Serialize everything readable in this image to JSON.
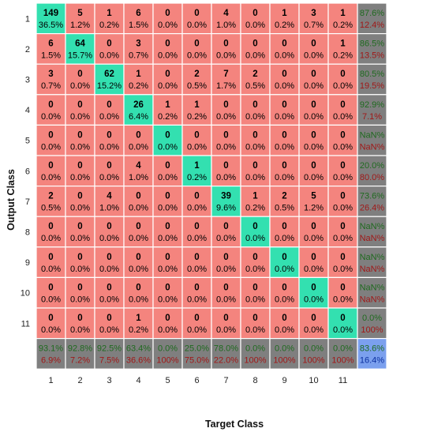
{
  "chart_data": {
    "type": "heatmap",
    "variant": "confusion-matrix",
    "xlabel": "Target Class",
    "ylabel": "Output Class",
    "x_ticks": [
      "1",
      "2",
      "3",
      "4",
      "5",
      "6",
      "7",
      "8",
      "9",
      "10",
      "11"
    ],
    "y_ticks": [
      "1",
      "2",
      "3",
      "4",
      "5",
      "6",
      "7",
      "8",
      "9",
      "10",
      "11"
    ],
    "counts": [
      [
        149,
        5,
        1,
        6,
        0,
        0,
        4,
        0,
        1,
        3,
        1
      ],
      [
        6,
        64,
        0,
        3,
        0,
        0,
        0,
        0,
        0,
        0,
        1
      ],
      [
        3,
        0,
        62,
        1,
        0,
        2,
        7,
        2,
        0,
        0,
        0
      ],
      [
        0,
        0,
        0,
        26,
        1,
        1,
        0,
        0,
        0,
        0,
        0
      ],
      [
        0,
        0,
        0,
        0,
        0,
        0,
        0,
        0,
        0,
        0,
        0
      ],
      [
        0,
        0,
        0,
        4,
        0,
        1,
        0,
        0,
        0,
        0,
        0
      ],
      [
        2,
        0,
        4,
        0,
        0,
        0,
        39,
        1,
        2,
        5,
        0
      ],
      [
        0,
        0,
        0,
        0,
        0,
        0,
        0,
        0,
        0,
        0,
        0
      ],
      [
        0,
        0,
        0,
        0,
        0,
        0,
        0,
        0,
        0,
        0,
        0
      ],
      [
        0,
        0,
        0,
        0,
        0,
        0,
        0,
        0,
        0,
        0,
        0
      ],
      [
        0,
        0,
        0,
        1,
        0,
        0,
        0,
        0,
        0,
        0,
        0
      ]
    ],
    "percents": [
      [
        "36.5%",
        "1.2%",
        "0.2%",
        "1.5%",
        "0.0%",
        "0.0%",
        "1.0%",
        "0.0%",
        "0.2%",
        "0.7%",
        "0.2%"
      ],
      [
        "1.5%",
        "15.7%",
        "0.0%",
        "0.7%",
        "0.0%",
        "0.0%",
        "0.0%",
        "0.0%",
        "0.0%",
        "0.0%",
        "0.2%"
      ],
      [
        "0.7%",
        "0.0%",
        "15.2%",
        "0.2%",
        "0.0%",
        "0.5%",
        "1.7%",
        "0.5%",
        "0.0%",
        "0.0%",
        "0.0%"
      ],
      [
        "0.0%",
        "0.0%",
        "0.0%",
        "6.4%",
        "0.2%",
        "0.2%",
        "0.0%",
        "0.0%",
        "0.0%",
        "0.0%",
        "0.0%"
      ],
      [
        "0.0%",
        "0.0%",
        "0.0%",
        "0.0%",
        "0.0%",
        "0.0%",
        "0.0%",
        "0.0%",
        "0.0%",
        "0.0%",
        "0.0%"
      ],
      [
        "0.0%",
        "0.0%",
        "0.0%",
        "1.0%",
        "0.0%",
        "0.2%",
        "0.0%",
        "0.0%",
        "0.0%",
        "0.0%",
        "0.0%"
      ],
      [
        "0.5%",
        "0.0%",
        "1.0%",
        "0.0%",
        "0.0%",
        "0.0%",
        "9.6%",
        "0.2%",
        "0.5%",
        "1.2%",
        "0.0%"
      ],
      [
        "0.0%",
        "0.0%",
        "0.0%",
        "0.0%",
        "0.0%",
        "0.0%",
        "0.0%",
        "0.0%",
        "0.0%",
        "0.0%",
        "0.0%"
      ],
      [
        "0.0%",
        "0.0%",
        "0.0%",
        "0.0%",
        "0.0%",
        "0.0%",
        "0.0%",
        "0.0%",
        "0.0%",
        "0.0%",
        "0.0%"
      ],
      [
        "0.0%",
        "0.0%",
        "0.0%",
        "0.0%",
        "0.0%",
        "0.0%",
        "0.0%",
        "0.0%",
        "0.0%",
        "0.0%",
        "0.0%"
      ],
      [
        "0.0%",
        "0.0%",
        "0.0%",
        "0.2%",
        "0.0%",
        "0.0%",
        "0.0%",
        "0.0%",
        "0.0%",
        "0.0%",
        "0.0%"
      ]
    ],
    "row_summary": [
      [
        "87.6%",
        "12.4%"
      ],
      [
        "86.5%",
        "13.5%"
      ],
      [
        "80.5%",
        "19.5%"
      ],
      [
        "92.9%",
        "7.1%"
      ],
      [
        "NaN%",
        "NaN%"
      ],
      [
        "20.0%",
        "80.0%"
      ],
      [
        "73.6%",
        "26.4%"
      ],
      [
        "NaN%",
        "NaN%"
      ],
      [
        "NaN%",
        "NaN%"
      ],
      [
        "NaN%",
        "NaN%"
      ],
      [
        "0.0%",
        "100%"
      ]
    ],
    "col_summary": [
      [
        "93.1%",
        "6.9%"
      ],
      [
        "92.8%",
        "7.2%"
      ],
      [
        "92.5%",
        "7.5%"
      ],
      [
        "63.4%",
        "36.6%"
      ],
      [
        "0.0%",
        "100%"
      ],
      [
        "25.0%",
        "75.0%"
      ],
      [
        "78.0%",
        "22.0%"
      ],
      [
        "0.0%",
        "100%"
      ],
      [
        "0.0%",
        "100%"
      ],
      [
        "0.0%",
        "100%"
      ],
      [
        "0.0%",
        "100%"
      ]
    ],
    "overall": [
      "83.6%",
      "16.4%"
    ],
    "colors": {
      "diagonal": "#33e0b0",
      "off_diagonal": "#f4847e",
      "summary": "#7f7f7f",
      "overall": "#7ba0ee",
      "correct_text": "#1f6a1f",
      "error_text": "#a01818",
      "overall_text": "#0b2f9e"
    }
  }
}
